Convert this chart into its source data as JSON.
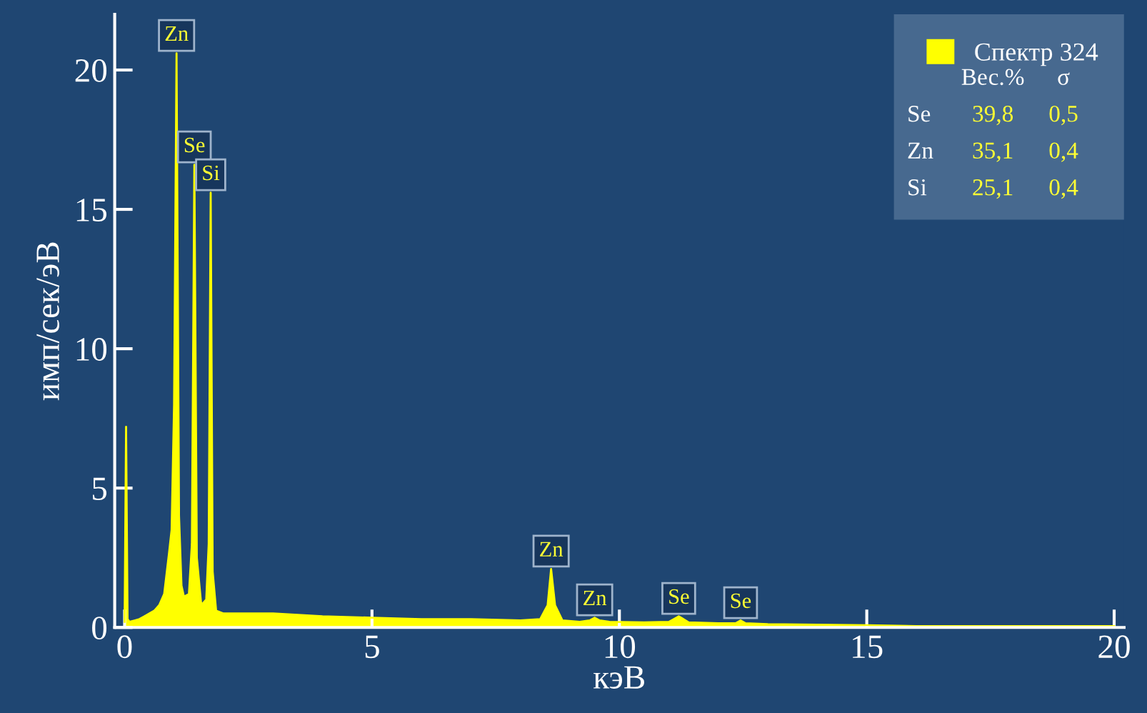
{
  "chart_data": {
    "type": "area",
    "xlabel": "кэВ",
    "ylabel": "имп/сек/эВ",
    "xlim": [
      -0.2,
      20.2
    ],
    "ylim": [
      0,
      22
    ],
    "xticks": [
      0,
      5,
      10,
      15,
      20
    ],
    "yticks": [
      0,
      5,
      10,
      15,
      20
    ],
    "grid": false,
    "legend": "top right",
    "series": [
      {
        "name": "Спектр 324",
        "color": "#ffff00",
        "x": [
          0,
          0.03,
          0.06,
          0.1,
          0.2,
          0.3,
          0.4,
          0.5,
          0.6,
          0.7,
          0.8,
          0.9,
          0.95,
          1.0,
          1.05,
          1.1,
          1.15,
          1.2,
          1.3,
          1.36,
          1.41,
          1.46,
          1.55,
          1.65,
          1.7,
          1.74,
          1.78,
          1.85,
          2.0,
          2.5,
          3,
          3.5,
          4,
          5,
          6,
          7,
          8,
          8.4,
          8.55,
          8.62,
          8.7,
          8.85,
          9.2,
          9.4,
          9.5,
          9.6,
          9.8,
          10.5,
          11.0,
          11.15,
          11.2,
          11.25,
          11.4,
          12,
          12.35,
          12.45,
          12.55,
          13,
          14,
          15,
          16,
          17,
          18,
          19,
          20
        ],
        "values": [
          0.2,
          7.2,
          0.3,
          0.2,
          0.25,
          0.3,
          0.4,
          0.5,
          0.6,
          0.8,
          1.2,
          2.7,
          3.5,
          8,
          20.6,
          4,
          1.5,
          1.1,
          1.2,
          3,
          16.6,
          2.5,
          0.8,
          1.0,
          3,
          15.6,
          2,
          0.6,
          0.5,
          0.5,
          0.5,
          0.45,
          0.4,
          0.35,
          0.3,
          0.3,
          0.25,
          0.3,
          0.8,
          2.1,
          0.8,
          0.25,
          0.2,
          0.25,
          0.35,
          0.25,
          0.2,
          0.18,
          0.2,
          0.35,
          0.4,
          0.35,
          0.18,
          0.15,
          0.15,
          0.25,
          0.15,
          0.12,
          0.1,
          0.08,
          0.05,
          0.05,
          0.05,
          0.05,
          0.05
        ]
      }
    ],
    "annotations": [
      {
        "text": "Zn",
        "x": 1.05,
        "y": 20.6
      },
      {
        "text": "Se",
        "x": 1.41,
        "y": 16.6
      },
      {
        "text": "Si",
        "x": 1.74,
        "y": 15.6
      },
      {
        "text": "Zn",
        "x": 8.62,
        "y": 2.1
      },
      {
        "text": "Zn",
        "x": 9.5,
        "y": 0.35
      },
      {
        "text": "Se",
        "x": 11.2,
        "y": 0.4
      },
      {
        "text": "Se",
        "x": 12.45,
        "y": 0.25
      },
      "Вес.%",
      "σ",
      "Se",
      "39,8",
      "0,5",
      "Zn",
      "35,1",
      "0,4",
      "Si",
      "25,1",
      "0,4"
    ]
  }
}
